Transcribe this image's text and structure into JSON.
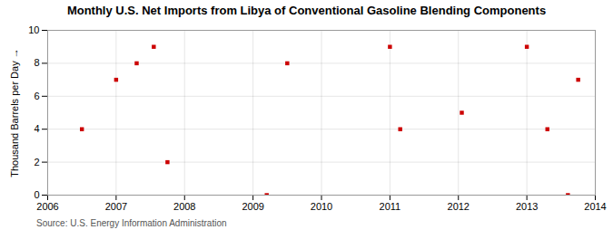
{
  "chart_data": {
    "type": "scatter",
    "title": "Monthly U.S. Net Imports from Libya of Conventional Gasoline Blending Components",
    "ylabel": "Thousand Barrels per Day",
    "source": "Source: U.S. Energy Information Administration",
    "x": [
      2006.5,
      2007.0,
      2007.3,
      2007.55,
      2007.75,
      2009.2,
      2009.5,
      2011.0,
      2011.15,
      2012.05,
      2013.0,
      2013.3,
      2013.6,
      2013.75
    ],
    "values": [
      4,
      7,
      8,
      9,
      2,
      0,
      8,
      9,
      4,
      5,
      9,
      4,
      0,
      7
    ],
    "color": "#cc0000",
    "marker": "square",
    "xlim": [
      2006,
      2014
    ],
    "xticks": [
      2006,
      2007,
      2008,
      2009,
      2010,
      2011,
      2012,
      2013,
      2014
    ],
    "ylim": [
      0,
      10
    ],
    "yticks": [
      0,
      2,
      4,
      6,
      8,
      10
    ],
    "grid": true
  }
}
